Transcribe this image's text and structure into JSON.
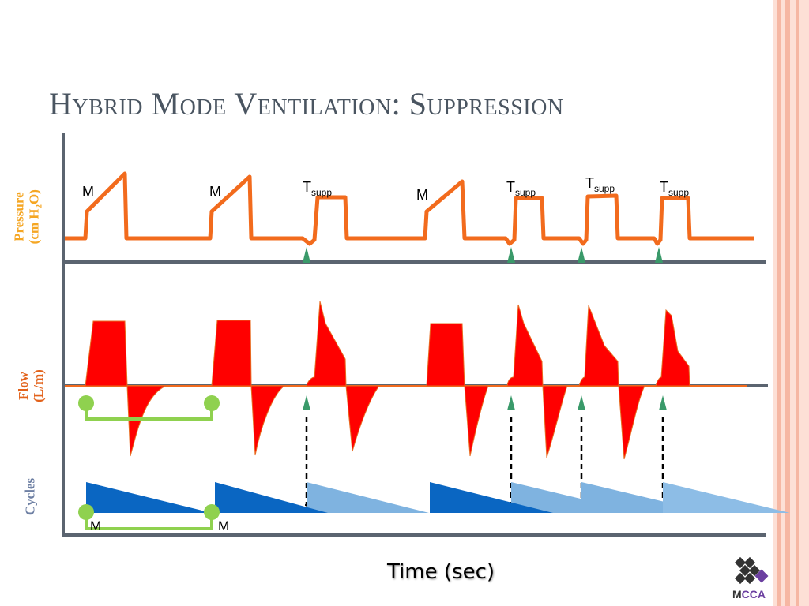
{
  "slide": {
    "title": "Hybrid Mode Ventilation: Suppression",
    "x_axis_label": "Time (sec)",
    "logo": {
      "name": "mcca-logo",
      "text_prefix": "M",
      "text_accent": "CCA"
    }
  },
  "colors": {
    "pressure": "#f26b1d",
    "pressure_label": "#f5a623",
    "flow": "#ff0000",
    "flow_label": "#e2621b",
    "cycles_label": "#6d7fa3",
    "mandatory_cycle": "#0a66c2",
    "spontaneous_cycle": "#7fb3e0",
    "trigger_arrow": "#3a9a6a",
    "bracket": "#8fd14f",
    "axis": "#5b6470"
  },
  "panels": {
    "pressure": {
      "label_line1": "Pressure",
      "label_line2_prefix": "(cm H",
      "label_line2_sub": "2",
      "label_line2_suffix": "O)"
    },
    "flow": {
      "label_line1": "Flow",
      "label_line2": "(L/m)"
    },
    "cycles": {
      "label": "Cycles"
    }
  },
  "annotations": {
    "pressure_labels": [
      {
        "text": "M",
        "sub": ""
      },
      {
        "text": "M",
        "sub": ""
      },
      {
        "text": "T",
        "sub": "supp"
      },
      {
        "text": "M",
        "sub": ""
      },
      {
        "text": "T",
        "sub": "supp"
      },
      {
        "text": "T",
        "sub": "supp"
      },
      {
        "text": "T",
        "sub": "supp"
      }
    ],
    "cycle_labels": [
      "M",
      "M"
    ]
  }
}
